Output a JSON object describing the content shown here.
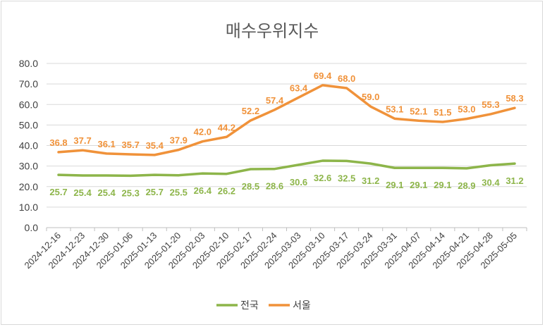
{
  "chart_data": {
    "type": "line",
    "title": "매수우위지수",
    "categories": [
      "2024-12-16",
      "2024-12-23",
      "2024-12-30",
      "2025-01-06",
      "2025-01-13",
      "2025-01-20",
      "2025-02-03",
      "2025-02-10",
      "2025-02-17",
      "2025-02-24",
      "2025-03-03",
      "2025-03-10",
      "2025-03-17",
      "2025-03-24",
      "2025-03-31",
      "2025-04-07",
      "2025-04-14",
      "2025-04-21",
      "2025-04-28",
      "2025-05-05"
    ],
    "series": [
      {
        "name": "전국",
        "color": "#8db54a",
        "values": [
          25.7,
          25.4,
          25.4,
          25.3,
          25.7,
          25.5,
          26.4,
          26.2,
          28.5,
          28.6,
          30.6,
          32.6,
          32.5,
          31.2,
          29.1,
          29.1,
          29.1,
          28.9,
          30.4,
          31.2
        ]
      },
      {
        "name": "서울",
        "color": "#f0923a",
        "values": [
          36.8,
          37.7,
          36.1,
          35.7,
          35.4,
          37.9,
          42.0,
          44.2,
          52.2,
          57.4,
          63.4,
          69.4,
          68.0,
          59.0,
          53.1,
          52.1,
          51.5,
          53.0,
          55.3,
          58.3
        ]
      }
    ],
    "ylim": [
      0,
      80
    ],
    "yticks": [
      "0.0",
      "10.0",
      "20.0",
      "30.0",
      "40.0",
      "50.0",
      "60.0",
      "70.0",
      "80.0"
    ],
    "grid": true,
    "legend": "bottom"
  }
}
